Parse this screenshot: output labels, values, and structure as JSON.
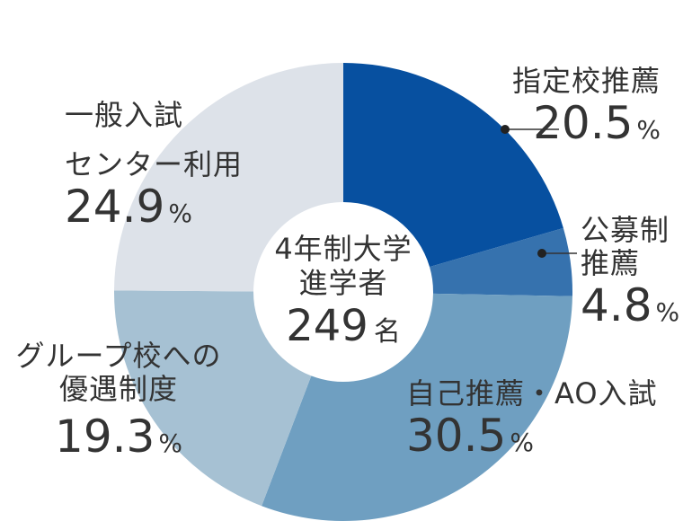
{
  "chart_data": {
    "type": "pie",
    "center_text": {
      "line1": "4年制大学",
      "line2": "進学者",
      "total": "249",
      "total_unit": "名"
    },
    "percent_unit": "%",
    "slices": [
      {
        "key": "shiteiko",
        "label_lines": [
          "指定校推薦"
        ],
        "value": 20.5,
        "value_text": "20.5",
        "color": "#0750a0"
      },
      {
        "key": "koubosei",
        "label_lines": [
          "公募制",
          "推薦"
        ],
        "value": 4.8,
        "value_text": "4.8",
        "color": "#3672ae"
      },
      {
        "key": "jiko",
        "label_lines": [
          "自己推薦・AO入試"
        ],
        "value": 30.5,
        "value_text": "30.5",
        "color": "#6f9fc1"
      },
      {
        "key": "group",
        "label_lines": [
          "グループ校への",
          "優遇制度"
        ],
        "value": 19.3,
        "value_text": "19.3",
        "color": "#a6c1d3"
      },
      {
        "key": "ippan",
        "label_lines": [
          "一般入試",
          "センター利用"
        ],
        "value": 24.9,
        "value_text": "24.9",
        "color": "#dde2e9"
      }
    ]
  }
}
